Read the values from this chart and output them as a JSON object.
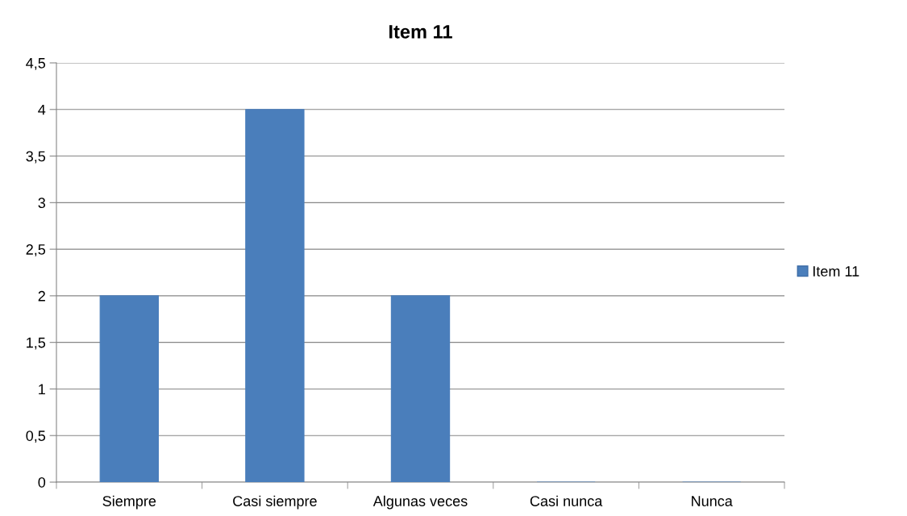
{
  "chart_data": {
    "type": "bar",
    "title": "Item 11",
    "categories": [
      "Siempre",
      "Casi siempre",
      "Algunas veces",
      "Casi nunca",
      "Nunca"
    ],
    "series": [
      {
        "name": "Item 11",
        "color": "#4a7ebb",
        "values": [
          2,
          4,
          2,
          0,
          0
        ]
      }
    ],
    "ylim": [
      0,
      4.5
    ],
    "yticks": [
      0,
      {
        "value": 0.5,
        "label": "0,5"
      },
      1,
      {
        "value": 1.5,
        "label": "1,5"
      },
      2,
      {
        "value": 2.5,
        "label": "2,5"
      },
      3,
      {
        "value": 3.5,
        "label": "3,5"
      },
      4,
      {
        "value": 4.5,
        "label": "4,5"
      }
    ],
    "grid": "y",
    "legend": "right"
  }
}
